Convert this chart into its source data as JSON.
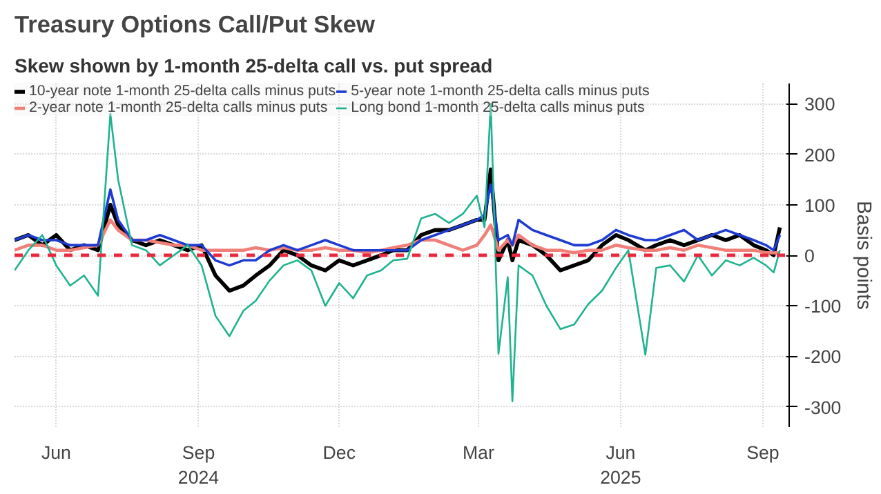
{
  "chart_data": {
    "type": "line",
    "title": "Treasury Options Call/Put Skew",
    "subtitle": "Skew shown by 1-month 25-delta call vs. put spread",
    "ylabel": "Basis points",
    "x": [
      "2024-05-05",
      "2024-05-14",
      "2024-05-23",
      "2024-06-01",
      "2024-06-10",
      "2024-06-19",
      "2024-06-28",
      "2024-07-06",
      "2024-07-11",
      "2024-07-20",
      "2024-07-29",
      "2024-08-07",
      "2024-08-16",
      "2024-08-25",
      "2024-09-03",
      "2024-09-12",
      "2024-09-21",
      "2024-09-30",
      "2024-10-08",
      "2024-10-17",
      "2024-10-26",
      "2024-11-04",
      "2024-11-13",
      "2024-11-22",
      "2024-12-01",
      "2024-12-10",
      "2024-12-19",
      "2024-12-28",
      "2025-01-05",
      "2025-01-14",
      "2025-01-23",
      "2025-02-01",
      "2025-02-10",
      "2025-02-19",
      "2025-02-28",
      "2025-03-05",
      "2025-03-09",
      "2025-03-14",
      "2025-03-20",
      "2025-03-23",
      "2025-03-27",
      "2025-04-05",
      "2025-04-14",
      "2025-04-23",
      "2025-05-02",
      "2025-05-11",
      "2025-05-20",
      "2025-05-29",
      "2025-06-06",
      "2025-06-17",
      "2025-06-24",
      "2025-07-03",
      "2025-07-12",
      "2025-07-21",
      "2025-07-30",
      "2025-08-08",
      "2025-08-17",
      "2025-08-26",
      "2025-09-03",
      "2025-09-08",
      "2025-09-12"
    ],
    "series": [
      {
        "name": "10-year note 1-month 25-delta calls minus puts",
        "color": "#000000",
        "values": [
          30,
          40,
          20,
          40,
          10,
          20,
          10,
          100,
          60,
          30,
          20,
          30,
          20,
          10,
          20,
          -40,
          -70,
          -60,
          -40,
          -20,
          10,
          0,
          -20,
          -30,
          -10,
          -20,
          -10,
          0,
          10,
          10,
          40,
          50,
          50,
          60,
          70,
          70,
          170,
          -10,
          30,
          -10,
          30,
          20,
          0,
          -30,
          -20,
          -10,
          20,
          40,
          30,
          10,
          20,
          30,
          20,
          30,
          40,
          30,
          40,
          20,
          10,
          0,
          55
        ]
      },
      {
        "name": "2-year note 1-month 25-delta calls minus puts",
        "color": "#f07f78",
        "values": [
          10,
          20,
          20,
          10,
          10,
          15,
          20,
          70,
          50,
          30,
          30,
          25,
          20,
          20,
          10,
          10,
          10,
          10,
          15,
          10,
          15,
          10,
          10,
          15,
          10,
          10,
          5,
          10,
          15,
          20,
          30,
          30,
          20,
          10,
          20,
          40,
          60,
          10,
          30,
          20,
          40,
          20,
          10,
          10,
          5,
          10,
          10,
          20,
          15,
          10,
          10,
          15,
          10,
          20,
          15,
          10,
          10,
          10,
          5,
          5,
          5
        ]
      },
      {
        "name": "5-year note 1-month 25-delta calls minus puts",
        "color": "#1e3cd2",
        "values": [
          30,
          40,
          30,
          30,
          20,
          20,
          20,
          130,
          70,
          30,
          30,
          40,
          30,
          20,
          20,
          -10,
          -20,
          -10,
          -10,
          10,
          20,
          10,
          20,
          30,
          20,
          10,
          10,
          10,
          10,
          10,
          30,
          40,
          50,
          60,
          70,
          80,
          140,
          30,
          40,
          20,
          70,
          50,
          40,
          30,
          20,
          20,
          30,
          50,
          40,
          30,
          30,
          40,
          50,
          30,
          40,
          50,
          40,
          30,
          20,
          10,
          40
        ]
      },
      {
        "name": "Long bond 1-month 25-delta calls minus puts",
        "color": "#1fb38f",
        "values": [
          -30,
          10,
          40,
          -20,
          -60,
          -40,
          -80,
          280,
          150,
          20,
          10,
          -20,
          0,
          20,
          -20,
          -120,
          -160,
          -110,
          -90,
          -50,
          -20,
          -10,
          -30,
          -100,
          -55,
          -85,
          -40,
          -30,
          -10,
          -7,
          73,
          82,
          64,
          82,
          118,
          55,
          300,
          -195,
          -43,
          -289,
          -20,
          -40,
          -100,
          -146,
          -137,
          -97,
          -70,
          -25,
          10,
          -197,
          -25,
          -20,
          -52,
          0,
          -40,
          -10,
          -20,
          -5,
          -20,
          -34,
          10
        ]
      }
    ],
    "xlim": [
      "2024-05-05",
      "2025-09-18"
    ],
    "xticks": [
      {
        "value": "2024-06-01",
        "label": "Jun"
      },
      {
        "value": "2024-09-01",
        "label": "Sep\n2024"
      },
      {
        "value": "2024-12-01",
        "label": "Dec"
      },
      {
        "value": "2025-03-01",
        "label": "Mar"
      },
      {
        "value": "2025-06-01",
        "label": "Jun\n2025"
      },
      {
        "value": "2025-09-01",
        "label": "Sep"
      }
    ],
    "ylim": [
      -340,
      340
    ],
    "yticks": [
      -300,
      -200,
      -100,
      0,
      100,
      200,
      300
    ],
    "ref_lines": [
      {
        "axis": "y",
        "value": 0,
        "color": "#e8283c",
        "line_style": "dashed"
      }
    ],
    "grid": true,
    "legend": "top left",
    "line_style": "solid",
    "marker": "none"
  }
}
